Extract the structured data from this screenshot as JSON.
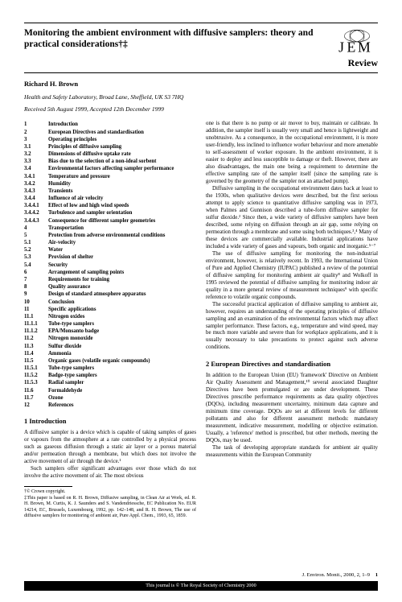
{
  "title": "Monitoring the ambient environment with diffusive samplers: theory and practical considerations†‡",
  "logo_text": "JEM",
  "review_label": "Review",
  "author": "Richard H. Brown",
  "affiliation": "Health and Safety Laboratory, Broad Lane, Sheffield, UK S3 7HQ",
  "dates": "Received 5th August 1999, Accepted 12th December 1999",
  "toc": [
    {
      "n": "1",
      "t": "Introduction"
    },
    {
      "n": "2",
      "t": "European Directives and standardisation"
    },
    {
      "n": "3",
      "t": "Operating principles"
    },
    {
      "n": "3.1",
      "t": "Principles of diffusive sampling"
    },
    {
      "n": "3.2",
      "t": "Dimensions of diffusive uptake rate"
    },
    {
      "n": "3.3",
      "t": "Bias due to the selection of a non-ideal sorbent"
    },
    {
      "n": "3.4",
      "t": "Environmental factors affecting sampler performance"
    },
    {
      "n": "3.4.1",
      "t": "Temperature and pressure"
    },
    {
      "n": "3.4.2",
      "t": "Humidity"
    },
    {
      "n": "3.4.3",
      "t": "Transients"
    },
    {
      "n": "3.4.4",
      "t": "Influence of air velocity"
    },
    {
      "n": "3.4.4.1",
      "t": "Effect of low and high wind speeds"
    },
    {
      "n": "3.4.4.2",
      "t": "Turbulence and sampler orientation"
    },
    {
      "n": "3.4.4.3",
      "t": "Consequence for different sampler geometries"
    },
    {
      "n": "4",
      "t": "Transportation"
    },
    {
      "n": "5",
      "t": "Protection from adverse environmental conditions"
    },
    {
      "n": "5.1",
      "t": "Air-velocity"
    },
    {
      "n": "5.2",
      "t": "Water"
    },
    {
      "n": "5.3",
      "t": "Provision of shelter"
    },
    {
      "n": "5.4",
      "t": "Security"
    },
    {
      "n": "6",
      "t": "Arrangement of sampling points"
    },
    {
      "n": "7",
      "t": "Requirements for training"
    },
    {
      "n": "8",
      "t": "Quality assurance"
    },
    {
      "n": "9",
      "t": "Design of standard atmosphere apparatus"
    },
    {
      "n": "10",
      "t": "Conclusion"
    },
    {
      "n": "11",
      "t": "Specific applications"
    },
    {
      "n": "11.1",
      "t": "Nitrogen oxides"
    },
    {
      "n": "11.1.1",
      "t": "Tube-type samplers"
    },
    {
      "n": "11.1.2",
      "t": "EPA/Monsanto badge"
    },
    {
      "n": "11.2",
      "t": "Nitrogen monoxide"
    },
    {
      "n": "11.3",
      "t": "Sulfur dioxide"
    },
    {
      "n": "11.4",
      "t": "Ammonia"
    },
    {
      "n": "11.5",
      "t": "Organic gases (volatile organic compounds)"
    },
    {
      "n": "11.5.1",
      "t": "Tube-type samplers"
    },
    {
      "n": "11.5.2",
      "t": "Badge-type samplers"
    },
    {
      "n": "11.5.3",
      "t": "Radial sampler"
    },
    {
      "n": "11.6",
      "t": "Formaldehyde"
    },
    {
      "n": "11.7",
      "t": "Ozone"
    },
    {
      "n": "12",
      "t": "References"
    }
  ],
  "sec1_heading": "1  Introduction",
  "sec1_p1": "A diffusive sampler is a device which is capable of taking samples of gases or vapours from the atmosphere at a rate controlled by a physical process such as gaseous diffusion through a static air layer or a porous material and/or permeation through a membrane, but which does not involve the active movement of air through the device.¹",
  "sec1_p2": "Such samplers offer significant advantages over those which do not involve the active movement of air. The most obvious",
  "footnote1": "†© Crown copyright.",
  "footnote2": "‡This paper is based on R. H. Brown, Diffusive sampling, in Clean Air at Work, ed. R. H. Brown, M. Curtis, K. J. Saunders and S. Vandendriessche, EC Publication No. EUR 14214, EC, Brussels, Luxembourg, 1992, pp. 142–148, and R. H. Brown, The use of diffusive samplers for monitoring of ambient air, Pure Appl. Chem., 1993, 65, 1859.",
  "col2_p1": "one is that there is no pump or air mover to buy, maintain or calibrate. In addition, the sampler itself is usually very small and hence is lightweight and unobtrusive. As a consequence, in the occupational environment, it is more user-friendly, less inclined to influence worker behaviour and more amenable to self-assessment of worker exposure. In the ambient environment, it is easier to deploy and less susceptible to damage or theft. However, there are also disadvantages, the main one being a requirement to determine the effective sampling rate of the sampler itself (since the sampling rate is governed by the geometry of the sampler not an attached pump).",
  "col2_p2": "Diffusive sampling in the occupational environment dates back at least to the 1930s, when qualitative devices were described, but the first serious attempt to apply science to quantitative diffusive sampling was in 1973, when Palmes and Gunnison described a tube-form diffusive sampler for sulfur dioxide.² Since then, a wide variety of diffusive samplers have been described, some relying on diffusion through an air gap, some relying on permeation through a membrane and some using both techniques.³,⁴ Many of these devices are commercially available. Industrial applications have included a wide variety of gases and vapours, both organic and inorganic.⁵⁻⁷",
  "col2_p3": "The use of diffusive sampling for monitoring the non-industrial environment, however, is relatively recent. In 1993, the International Union of Pure and Applied Chemistry (IUPAC) published a review of the potential of diffusive sampling for monitoring ambient air quality⁸ and Wolkoff in 1995 reviewed the potential of diffusive sampling for monitoring indoor air quality in a more general review of measurement techniques⁹ with specific reference to volatile organic compounds.",
  "col2_p4": "The successful practical application of diffusive sampling to ambient air, however, requires an understanding of the operating principles of diffusive sampling and an examination of the environmental factors which may affect sampler performance. These factors, e.g., temperature and wind speed, may be much more variable and severe than for workplace applications, and it is usually necessary to take precautions to protect against such adverse conditions.",
  "sec2_heading": "2  European Directives and standardisation",
  "sec2_p1": "In addition to the European Union (EU) 'framework' Directive on Ambient Air Quality Assessment and Management,¹⁰ several associated Daughter Directives have been promulgated or are under development. These Directives prescribe performance requirements as data quality objectives (DQOs), including measurement uncertainty, minimum data capture and minimum time coverage. DQOs are set at different levels for different pollutants and also for different assessment methods: mandatory measurement, indicative measurement, modelling or objective estimation. Usually, a 'reference' method is prescribed, but other methods, meeting the DQOs, may be used.",
  "sec2_p2": "The task of developing appropriate standards for ambient air quality measurements within the European Community",
  "journal_ref_text": "J. Environ. Monit., 2000, 2, 1–9",
  "page_number": "1",
  "copyright_text": "This journal is © The Royal Society of Chemistry 2000",
  "colors": {
    "text": "#000000",
    "background": "#ffffff",
    "bar": "#000000"
  }
}
